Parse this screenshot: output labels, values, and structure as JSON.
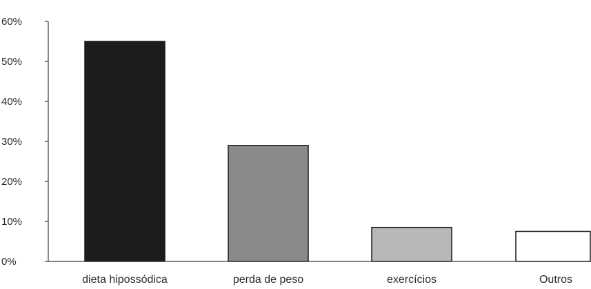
{
  "chart_data": {
    "type": "bar",
    "categories": [
      "dieta hipossódica",
      "perda de peso",
      "exercícios",
      "Outros"
    ],
    "values": [
      55,
      29,
      8.5,
      7.5
    ],
    "ylim": [
      0,
      60
    ],
    "yticks": [
      0,
      10,
      20,
      30,
      40,
      50,
      60
    ],
    "ytick_labels": [
      "0%",
      "10%",
      "20%",
      "30%",
      "40%",
      "50%",
      "60%"
    ],
    "bar_colors": [
      "#1c1c1c",
      "#8a8a8a",
      "#b8b8b8",
      "#ffffff"
    ],
    "grid": false,
    "legend": "none"
  }
}
